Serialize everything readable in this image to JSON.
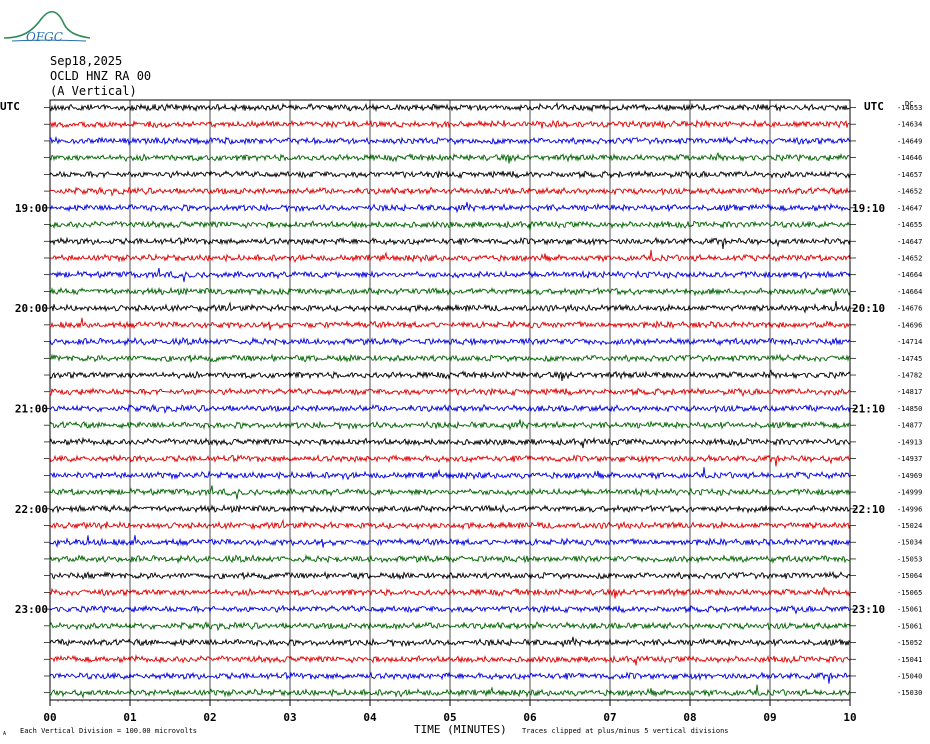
{
  "logo": {
    "text": "OFGC"
  },
  "header": {
    "date": "Sep18,2025",
    "station": "OCLD HNZ RA 00",
    "component": "(A Vertical)"
  },
  "axes": {
    "left_utc": "UTC",
    "right_utc": "UTC",
    "right_dc": "DC"
  },
  "footer": {
    "scale_note": "Each Vertical Division =  100.00 microvolts",
    "clip_note": "Traces clipped at plus/minus 5 vertical divisions",
    "corner_mark": "A"
  },
  "colors": {
    "trace_cycle": [
      "#000000",
      "#dd0000",
      "#0000dd",
      "#006400"
    ],
    "grid": "#000000"
  },
  "chart_data": {
    "type": "line",
    "title": "OCLD HNZ RA 00 (A Vertical)",
    "xlabel": "TIME (MINUTES)",
    "x_ticks": [
      "00",
      "01",
      "02",
      "03",
      "04",
      "05",
      "06",
      "07",
      "08",
      "09",
      "10"
    ],
    "xlim": [
      0,
      10
    ],
    "left_time_labels": [
      {
        "row": 6,
        "label": "19:00"
      },
      {
        "row": 12,
        "label": "20:00"
      },
      {
        "row": 18,
        "label": "21:00"
      },
      {
        "row": 24,
        "label": "22:00"
      },
      {
        "row": 30,
        "label": "23:00"
      }
    ],
    "right_time_labels": [
      {
        "row": 6,
        "label": "19:10"
      },
      {
        "row": 12,
        "label": "20:10"
      },
      {
        "row": 18,
        "label": "21:10"
      },
      {
        "row": 24,
        "label": "22:10"
      },
      {
        "row": 30,
        "label": "23:10"
      }
    ],
    "dc_offsets": [
      -14653,
      -14634,
      -14649,
      -14646,
      -14657,
      -14652,
      -14647,
      -14655,
      -14647,
      -14652,
      -14664,
      -14664,
      -14676,
      -14696,
      -14714,
      -14745,
      -14782,
      -14817,
      -14850,
      -14877,
      -14913,
      -14937,
      -14969,
      -14999,
      -14996,
      -15024,
      -15034,
      -15053,
      -15064,
      -15065,
      -15061,
      -15061,
      -15052,
      -15041,
      -15040,
      -15030
    ],
    "trace_minutes_per_row": 10,
    "vertical_division_microvolts": 100.0
  }
}
